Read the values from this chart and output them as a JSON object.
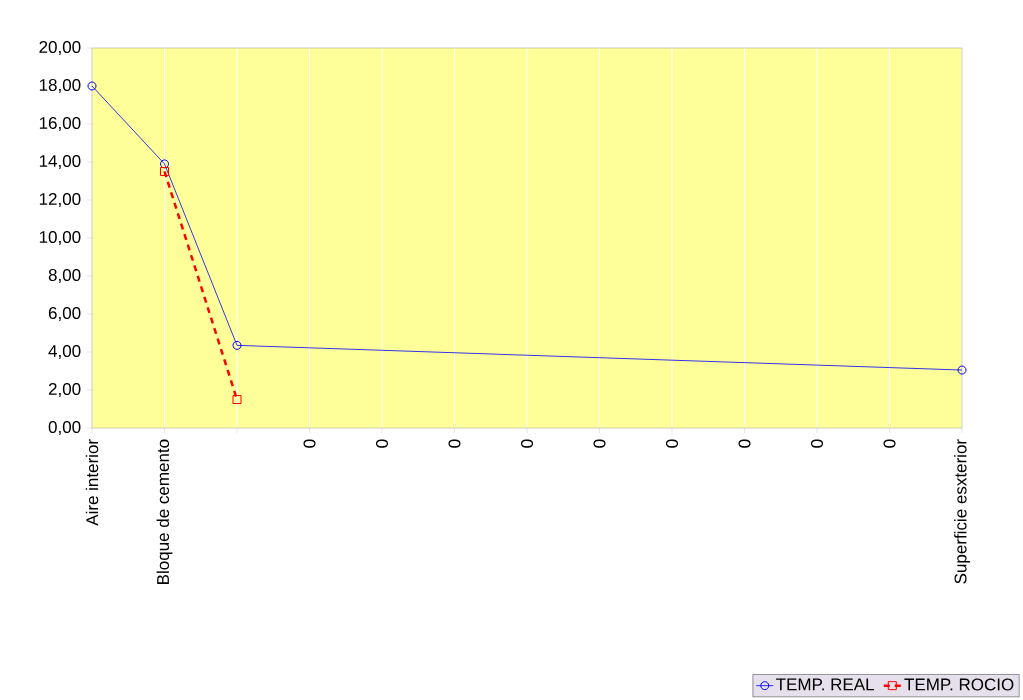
{
  "chart_data": {
    "type": "line",
    "categories": [
      "Aire interior",
      "Bloque de cemento",
      null,
      "0",
      "0",
      "0",
      "0",
      "0",
      "0",
      "0",
      "0",
      "0",
      "Superficie esxterior"
    ],
    "series": [
      {
        "name": "TEMP. REAL",
        "color": "#0000ff",
        "marker": "circle",
        "line_style": "solid",
        "values": [
          18.0,
          13.9,
          4.35,
          null,
          null,
          null,
          null,
          null,
          null,
          null,
          null,
          null,
          3.05
        ]
      },
      {
        "name": "TEMP. ROCIO",
        "color": "#ff0000",
        "marker": "square",
        "line_style": "dashed",
        "values": [
          null,
          13.5,
          1.5,
          null,
          null,
          null,
          null,
          null,
          null,
          null,
          null,
          null,
          null
        ]
      }
    ],
    "ylim": [
      0,
      20
    ],
    "yticks": [
      {
        "value": 0,
        "label": "0,00"
      },
      {
        "value": 2,
        "label": "2,00"
      },
      {
        "value": 4,
        "label": "4,00"
      },
      {
        "value": 6,
        "label": "6,00"
      },
      {
        "value": 8,
        "label": "8,00"
      },
      {
        "value": 10,
        "label": "10,00"
      },
      {
        "value": 12,
        "label": "12,00"
      },
      {
        "value": 14,
        "label": "14,00"
      },
      {
        "value": 16,
        "label": "16,00"
      },
      {
        "value": 18,
        "label": "18,00"
      },
      {
        "value": 20,
        "label": "20,00"
      }
    ],
    "grid": "x",
    "legend": "bottom right"
  }
}
